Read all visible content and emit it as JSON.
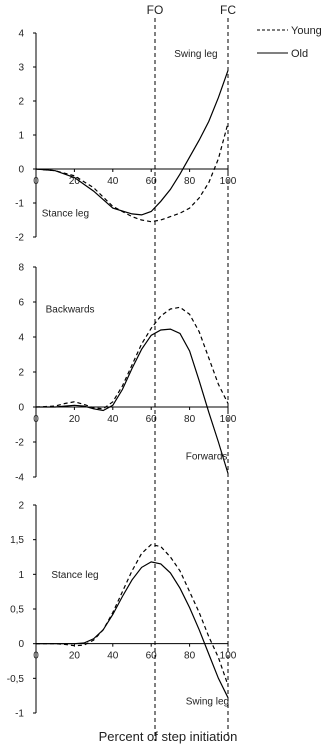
{
  "events": [
    {
      "label": "FO",
      "x": 62
    },
    {
      "label": "FC",
      "x": 100
    }
  ],
  "legend": [
    {
      "label": "Young",
      "style": "dashed"
    },
    {
      "label": "Old",
      "style": "solid"
    }
  ],
  "xlabel": "Percent of step initiation",
  "chart_data": [
    {
      "type": "line",
      "xlim": [
        0,
        100
      ],
      "ylim": [
        -2,
        4
      ],
      "xticks": [
        "0",
        "20",
        "40",
        "60",
        "80",
        "100"
      ],
      "yticks": [
        "-2",
        "-1",
        "0",
        "1",
        "2",
        "3",
        "4"
      ],
      "annotations": [
        {
          "text": "Swing leg",
          "x": 72,
          "y": 3.4
        },
        {
          "text": "Stance leg",
          "x": 3,
          "y": -1.3
        }
      ],
      "series": [
        {
          "name": "Young",
          "style": "dashed",
          "x": [
            0,
            10,
            20,
            30,
            40,
            50,
            55,
            60,
            65,
            70,
            75,
            80,
            85,
            90,
            95,
            100
          ],
          "y": [
            0,
            -0.05,
            -0.2,
            -0.55,
            -1.1,
            -1.4,
            -1.5,
            -1.55,
            -1.5,
            -1.4,
            -1.3,
            -1.15,
            -0.85,
            -0.4,
            0.3,
            1.35
          ]
        },
        {
          "name": "Old",
          "style": "solid",
          "x": [
            0,
            10,
            20,
            30,
            40,
            50,
            55,
            60,
            65,
            70,
            75,
            80,
            85,
            90,
            95,
            100
          ],
          "y": [
            0,
            -0.05,
            -0.25,
            -0.65,
            -1.15,
            -1.32,
            -1.35,
            -1.25,
            -0.95,
            -0.6,
            -0.15,
            0.35,
            0.85,
            1.4,
            2.1,
            2.9
          ]
        }
      ]
    },
    {
      "type": "line",
      "xlim": [
        0,
        100
      ],
      "ylim": [
        -4,
        8
      ],
      "xticks": [
        "0",
        "20",
        "40",
        "60",
        "80",
        "100"
      ],
      "yticks": [
        "-4",
        "-2",
        "0",
        "2",
        "4",
        "6",
        "8"
      ],
      "annotations": [
        {
          "text": "Backwards",
          "x": 5,
          "y": 5.6
        },
        {
          "text": "Forwards",
          "x": 78,
          "y": -2.8
        }
      ],
      "series": [
        {
          "name": "Young",
          "style": "dashed",
          "x": [
            0,
            10,
            15,
            20,
            25,
            30,
            35,
            40,
            45,
            50,
            55,
            60,
            65,
            70,
            75,
            80,
            85,
            90,
            95,
            100
          ],
          "y": [
            0,
            0.05,
            0.2,
            0.3,
            0.15,
            -0.05,
            -0.1,
            0.3,
            1.2,
            2.4,
            3.6,
            4.5,
            5.2,
            5.6,
            5.7,
            5.3,
            4.3,
            2.8,
            1.3,
            0.2
          ]
        },
        {
          "name": "Old",
          "style": "solid",
          "x": [
            0,
            10,
            15,
            20,
            25,
            30,
            35,
            40,
            45,
            50,
            55,
            60,
            65,
            70,
            75,
            80,
            85,
            90,
            95,
            100
          ],
          "y": [
            0,
            0.0,
            0.05,
            0.1,
            0.05,
            -0.1,
            -0.2,
            0.1,
            1.0,
            2.2,
            3.3,
            4.1,
            4.4,
            4.45,
            4.2,
            3.2,
            1.5,
            -0.3,
            -2.0,
            -3.8
          ]
        }
      ]
    },
    {
      "type": "line",
      "xlim": [
        0,
        100
      ],
      "ylim": [
        -1,
        2
      ],
      "xticks": [
        "0",
        "20",
        "40",
        "60",
        "80",
        "100"
      ],
      "yticks": [
        "-1",
        "-0,5",
        "0",
        "0,5",
        "1",
        "1,5",
        "2"
      ],
      "annotations": [
        {
          "text": "Stance leg",
          "x": 8,
          "y": 1.0
        },
        {
          "text": "Swing leg",
          "x": 78,
          "y": -0.83
        }
      ],
      "series": [
        {
          "name": "Young",
          "style": "dashed",
          "x": [
            0,
            10,
            15,
            20,
            25,
            30,
            35,
            40,
            45,
            50,
            55,
            60,
            65,
            70,
            75,
            80,
            85,
            90,
            95,
            100
          ],
          "y": [
            0,
            0,
            -0.01,
            -0.03,
            -0.02,
            0.05,
            0.2,
            0.45,
            0.75,
            1.05,
            1.3,
            1.43,
            1.4,
            1.25,
            1.05,
            0.75,
            0.45,
            0.1,
            -0.2,
            -0.6
          ]
        },
        {
          "name": "Old",
          "style": "solid",
          "x": [
            0,
            10,
            15,
            20,
            25,
            30,
            35,
            40,
            45,
            50,
            55,
            60,
            65,
            70,
            75,
            80,
            85,
            90,
            95,
            100
          ],
          "y": [
            0,
            0,
            0,
            0,
            0.01,
            0.07,
            0.2,
            0.42,
            0.68,
            0.92,
            1.1,
            1.18,
            1.15,
            1.02,
            0.8,
            0.52,
            0.2,
            -0.15,
            -0.5,
            -0.78
          ]
        }
      ]
    }
  ]
}
